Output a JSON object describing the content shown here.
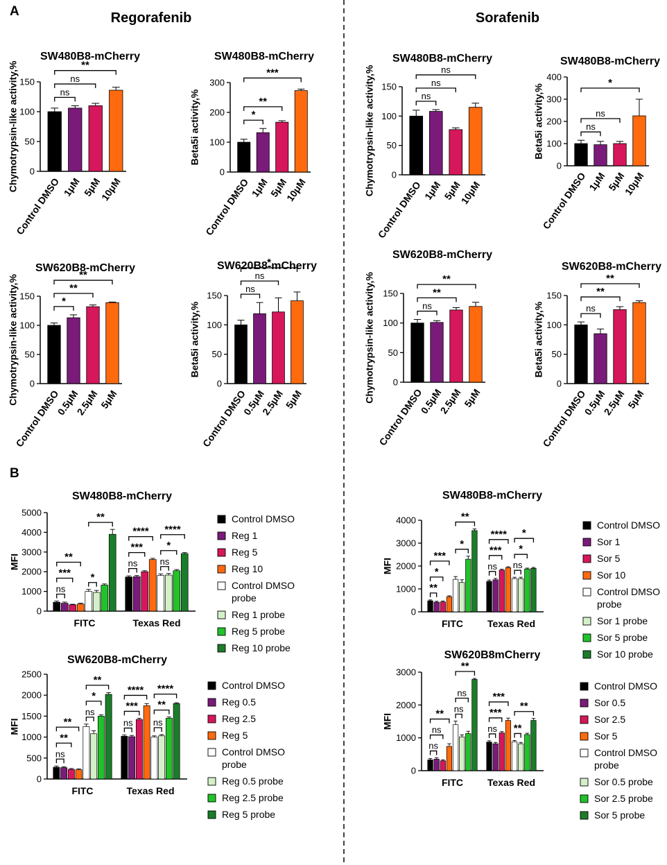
{
  "figure": {
    "panel_a": "A",
    "panel_b": "B",
    "drug_left": "Regorafenib",
    "drug_right": "Sorafenib"
  },
  "chart_data": [
    {
      "id": "a1",
      "type": "bar",
      "title": "SW480B8-mCherry",
      "ylabel": "Chymotrypsin-like activity,%",
      "ylim": [
        0,
        150
      ],
      "yticks": [
        0,
        50,
        100,
        150
      ],
      "categories": [
        "Control DMSO",
        "1μM",
        "5μM",
        "10μM"
      ],
      "values": [
        100,
        106,
        110,
        136
      ],
      "errors": [
        6,
        4,
        4,
        5
      ],
      "colors": [
        "#000000",
        "#7a1b7a",
        "#d6175b",
        "#ff6a0e"
      ],
      "comparisons": [
        {
          "label": "ns",
          "from": 0,
          "to": 1
        },
        {
          "label": "ns",
          "from": 0,
          "to": 2
        },
        {
          "label": "**",
          "from": 0,
          "to": 3
        }
      ]
    },
    {
      "id": "a2",
      "type": "bar",
      "title": "SW480B8-mCherry",
      "ylabel": "Beta5i activity,%",
      "ylim": [
        0,
        300
      ],
      "yticks": [
        0,
        100,
        200,
        300
      ],
      "categories": [
        "Control DMSO",
        "1μM",
        "5μM",
        "10μM"
      ],
      "values": [
        100,
        132,
        167,
        273
      ],
      "errors": [
        10,
        14,
        5,
        5
      ],
      "colors": [
        "#000000",
        "#7a1b7a",
        "#d6175b",
        "#ff6a0e"
      ],
      "comparisons": [
        {
          "label": "*",
          "from": 0,
          "to": 1
        },
        {
          "label": "**",
          "from": 0,
          "to": 2
        },
        {
          "label": "***",
          "from": 0,
          "to": 3
        }
      ]
    },
    {
      "id": "a3",
      "type": "bar",
      "title": "SW480B8-mCherry",
      "ylabel": "Chymotrypsin-like activity,%",
      "ylim": [
        0,
        150
      ],
      "yticks": [
        0,
        50,
        100,
        150
      ],
      "categories": [
        "Control DMSO",
        "1μM",
        "5μM",
        "10μM"
      ],
      "values": [
        100,
        108,
        77,
        115
      ],
      "errors": [
        10,
        3,
        3,
        7
      ],
      "colors": [
        "#000000",
        "#7a1b7a",
        "#d6175b",
        "#ff6a0e"
      ],
      "comparisons": [
        {
          "label": "ns",
          "from": 0,
          "to": 1
        },
        {
          "label": "ns",
          "from": 0,
          "to": 2
        },
        {
          "label": "ns",
          "from": 0,
          "to": 3
        }
      ]
    },
    {
      "id": "a4",
      "type": "bar",
      "title": "SW480B8-mCherry",
      "ylabel": "Beta5i activity,%",
      "ylim": [
        0,
        400
      ],
      "yticks": [
        0,
        100,
        200,
        300,
        400
      ],
      "categories": [
        "Control DMSO",
        "1μM",
        "5μM",
        "10μM"
      ],
      "values": [
        100,
        95,
        100,
        225
      ],
      "errors": [
        15,
        15,
        10,
        75
      ],
      "colors": [
        "#000000",
        "#7a1b7a",
        "#d6175b",
        "#ff6a0e"
      ],
      "comparisons": [
        {
          "label": "ns",
          "from": 0,
          "to": 1
        },
        {
          "label": "ns",
          "from": 0,
          "to": 2
        },
        {
          "label": "*",
          "from": 0,
          "to": 3
        }
      ]
    },
    {
      "id": "a5",
      "type": "bar",
      "title": "SW620B8-mCherry",
      "ylabel": "Chymotrypsin-like activity,%",
      "ylim": [
        0,
        150
      ],
      "yticks": [
        0,
        50,
        100,
        150
      ],
      "categories": [
        "Control DMSO",
        "0.5μM",
        "2.5μM",
        "5μM"
      ],
      "values": [
        100,
        113,
        132,
        139
      ],
      "errors": [
        4,
        5,
        3,
        1
      ],
      "colors": [
        "#000000",
        "#7a1b7a",
        "#d6175b",
        "#ff6a0e"
      ],
      "comparisons": [
        {
          "label": "*",
          "from": 0,
          "to": 1
        },
        {
          "label": "**",
          "from": 0,
          "to": 2
        },
        {
          "label": "**",
          "from": 0,
          "to": 3
        }
      ]
    },
    {
      "id": "a6",
      "type": "bar",
      "title": "SW620B8-mCherry",
      "ylabel": "Beta5i activity,%",
      "ylim": [
        0,
        150
      ],
      "yticks": [
        0,
        50,
        100,
        150
      ],
      "categories": [
        "Control DMSO",
        "0.5μM",
        "2.5μM",
        "5μM"
      ],
      "values": [
        100,
        119,
        122,
        141
      ],
      "errors": [
        8,
        19,
        24,
        15
      ],
      "colors": [
        "#000000",
        "#7a1b7a",
        "#d6175b",
        "#ff6a0e"
      ],
      "comparisons": [
        {
          "label": "ns",
          "from": 0,
          "to": 1
        },
        {
          "label": "ns",
          "from": 0,
          "to": 2
        },
        {
          "label": "*",
          "from": 0,
          "to": 3
        }
      ]
    },
    {
      "id": "a7",
      "type": "bar",
      "title": "SW620B8-mCherry",
      "ylabel": "Chymotrypsin-like activity,%",
      "ylim": [
        0,
        150
      ],
      "yticks": [
        0,
        50,
        100,
        150
      ],
      "categories": [
        "Control DMSO",
        "0.5μM",
        "2.5μM",
        "5μM"
      ],
      "values": [
        100,
        101,
        122,
        128
      ],
      "errors": [
        6,
        3,
        4,
        7
      ],
      "colors": [
        "#000000",
        "#7a1b7a",
        "#d6175b",
        "#ff6a0e"
      ],
      "comparisons": [
        {
          "label": "ns",
          "from": 0,
          "to": 1
        },
        {
          "label": "**",
          "from": 0,
          "to": 2
        },
        {
          "label": "**",
          "from": 0,
          "to": 3
        }
      ]
    },
    {
      "id": "a8",
      "type": "bar",
      "title": "SW620B8-mCherry",
      "ylabel": "Beta5i activity,%",
      "ylim": [
        0,
        150
      ],
      "yticks": [
        0,
        50,
        100,
        150
      ],
      "categories": [
        "Control DMSO",
        "0.5μM",
        "2.5μM",
        "5μM"
      ],
      "values": [
        100,
        85,
        126,
        138
      ],
      "errors": [
        5,
        8,
        5,
        3
      ],
      "colors": [
        "#000000",
        "#7a1b7a",
        "#d6175b",
        "#ff6a0e"
      ],
      "comparisons": [
        {
          "label": "ns",
          "from": 0,
          "to": 1
        },
        {
          "label": "**",
          "from": 0,
          "to": 2
        },
        {
          "label": "**",
          "from": 0,
          "to": 3
        }
      ]
    },
    {
      "id": "b1",
      "type": "bar",
      "title": "SW480B8-mCherry",
      "ylabel": "MFI",
      "ylim": [
        0,
        5000
      ],
      "yticks": [
        0,
        1000,
        2000,
        3000,
        4000,
        5000
      ],
      "groups": [
        "FITC",
        "Texas Red"
      ],
      "series": [
        {
          "name": "Control DMSO",
          "values": [
            450,
            1730
          ]
        },
        {
          "name": "Reg 1",
          "values": [
            400,
            1750
          ]
        },
        {
          "name": "Reg 5",
          "values": [
            320,
            2000
          ]
        },
        {
          "name": "Reg 10",
          "values": [
            360,
            2620
          ]
        },
        {
          "name": "Control DMSO probe",
          "values": [
            1000,
            1810
          ]
        },
        {
          "name": "Reg 1 probe",
          "values": [
            950,
            1830
          ]
        },
        {
          "name": "Reg 5 probe",
          "values": [
            1320,
            2050
          ]
        },
        {
          "name": "Reg 10 probe",
          "values": [
            3900,
            2920
          ]
        }
      ],
      "errors": [
        [
          60,
          60,
          30,
          40,
          100,
          100,
          60,
          250
        ],
        [
          60,
          60,
          50,
          60,
          80,
          80,
          60,
          50
        ]
      ],
      "comparisons": [
        {
          "label": "ns",
          "group": 0,
          "from": 0,
          "to": 1
        },
        {
          "label": "***",
          "group": 0,
          "from": 0,
          "to": 2
        },
        {
          "label": "**",
          "group": 0,
          "from": 0,
          "to": 3
        },
        {
          "label": "*",
          "group": 0,
          "from": 4,
          "to": 5
        },
        {
          "label": "**",
          "group": 0,
          "from": 4,
          "to": 7
        },
        {
          "label": "ns",
          "group": 1,
          "from": 0,
          "to": 1
        },
        {
          "label": "***",
          "group": 1,
          "from": 0,
          "to": 2
        },
        {
          "label": "****",
          "group": 1,
          "from": 0,
          "to": 3
        },
        {
          "label": "ns",
          "group": 1,
          "from": 4,
          "to": 5
        },
        {
          "label": "*",
          "group": 1,
          "from": 4,
          "to": 6
        },
        {
          "label": "****",
          "group": 1,
          "from": 4,
          "to": 7
        }
      ]
    },
    {
      "id": "b2",
      "type": "bar",
      "title": "SW480B8-mCherry",
      "ylabel": "MFI",
      "ylim": [
        0,
        4000
      ],
      "yticks": [
        0,
        1000,
        2000,
        3000,
        4000
      ],
      "groups": [
        "FITC",
        "Texas Red"
      ],
      "series": [
        {
          "name": "Control DMSO",
          "values": [
            480,
            1330
          ]
        },
        {
          "name": "Sor 1",
          "values": [
            420,
            1400
          ]
        },
        {
          "name": "Sor 5",
          "values": [
            430,
            1820
          ]
        },
        {
          "name": "Sor 10",
          "values": [
            660,
            1930
          ]
        },
        {
          "name": "Control DMSO probe",
          "values": [
            1420,
            1450
          ]
        },
        {
          "name": "Sor 1 probe",
          "values": [
            1280,
            1450
          ]
        },
        {
          "name": "Sor 5 probe",
          "values": [
            2300,
            1870
          ]
        },
        {
          "name": "Sor 10 probe",
          "values": [
            3550,
            1900
          ]
        }
      ],
      "errors": [
        [
          40,
          40,
          40,
          40,
          120,
          120,
          130,
          70
        ],
        [
          60,
          60,
          40,
          40,
          60,
          60,
          40,
          40
        ]
      ],
      "comparisons": [
        {
          "label": "**",
          "group": 0,
          "from": 0,
          "to": 1
        },
        {
          "label": "*",
          "group": 0,
          "from": 0,
          "to": 2
        },
        {
          "label": "***",
          "group": 0,
          "from": 0,
          "to": 3
        },
        {
          "label": "*",
          "group": 0,
          "from": 4,
          "to": 6
        },
        {
          "label": "**",
          "group": 0,
          "from": 4,
          "to": 7
        },
        {
          "label": "ns",
          "group": 1,
          "from": 0,
          "to": 1
        },
        {
          "label": "***",
          "group": 1,
          "from": 0,
          "to": 2
        },
        {
          "label": "****",
          "group": 1,
          "from": 0,
          "to": 3
        },
        {
          "label": "ns",
          "group": 1,
          "from": 4,
          "to": 5
        },
        {
          "label": "*",
          "group": 1,
          "from": 4,
          "to": 6
        },
        {
          "label": "*",
          "group": 1,
          "from": 4,
          "to": 7
        }
      ]
    },
    {
      "id": "b3",
      "type": "bar",
      "title": "SW620B8-mCherry",
      "ylabel": "MFI",
      "ylim": [
        0,
        2500
      ],
      "yticks": [
        0,
        500,
        1000,
        1500,
        2000,
        2500
      ],
      "groups": [
        "FITC",
        "Texas Red"
      ],
      "series": [
        {
          "name": "Control DMSO",
          "values": [
            280,
            1020
          ]
        },
        {
          "name": "Reg 0.5",
          "values": [
            270,
            1010
          ]
        },
        {
          "name": "Reg 2.5",
          "values": [
            230,
            1420
          ]
        },
        {
          "name": "Reg 5",
          "values": [
            220,
            1750
          ]
        },
        {
          "name": "Control DMSO probe",
          "values": [
            1250,
            1000
          ]
        },
        {
          "name": "Reg 0.5 probe",
          "values": [
            1080,
            1030
          ]
        },
        {
          "name": "Reg 2.5 probe",
          "values": [
            1500,
            1450
          ]
        },
        {
          "name": "Reg 5 probe",
          "values": [
            2020,
            1800
          ]
        }
      ],
      "errors": [
        [
          30,
          20,
          20,
          20,
          60,
          70,
          30,
          40
        ],
        [
          30,
          30,
          30,
          50,
          30,
          30,
          30,
          20
        ]
      ],
      "comparisons": [
        {
          "label": "ns",
          "group": 0,
          "from": 0,
          "to": 1
        },
        {
          "label": "**",
          "group": 0,
          "from": 0,
          "to": 2
        },
        {
          "label": "**",
          "group": 0,
          "from": 0,
          "to": 3
        },
        {
          "label": "ns",
          "group": 0,
          "from": 4,
          "to": 5
        },
        {
          "label": "*",
          "group": 0,
          "from": 4,
          "to": 6
        },
        {
          "label": "**",
          "group": 0,
          "from": 4,
          "to": 7
        },
        {
          "label": "ns",
          "group": 1,
          "from": 0,
          "to": 1
        },
        {
          "label": "***",
          "group": 1,
          "from": 0,
          "to": 2
        },
        {
          "label": "****",
          "group": 1,
          "from": 0,
          "to": 3
        },
        {
          "label": "ns",
          "group": 1,
          "from": 4,
          "to": 5
        },
        {
          "label": "**",
          "group": 1,
          "from": 4,
          "to": 6
        },
        {
          "label": "****",
          "group": 1,
          "from": 4,
          "to": 7
        }
      ]
    },
    {
      "id": "b4",
      "type": "bar",
      "title": "SW620B8mCherry",
      "ylabel": "MFI",
      "ylim": [
        0,
        3000
      ],
      "yticks": [
        0,
        1000,
        2000,
        3000
      ],
      "groups": [
        "FITC",
        "Texas Red"
      ],
      "series": [
        {
          "name": "Control DMSO",
          "values": [
            330,
            870
          ]
        },
        {
          "name": "Sor 0.5",
          "values": [
            350,
            820
          ]
        },
        {
          "name": "Sor 2.5",
          "values": [
            300,
            1150
          ]
        },
        {
          "name": "Sor 5",
          "values": [
            740,
            1530
          ]
        },
        {
          "name": "Control DMSO probe",
          "values": [
            1400,
            880
          ]
        },
        {
          "name": "Sor 0.5 probe",
          "values": [
            1030,
            820
          ]
        },
        {
          "name": "Sor 2.5 probe",
          "values": [
            1130,
            1100
          ]
        },
        {
          "name": "Sor 5 probe",
          "values": [
            2780,
            1530
          ]
        }
      ],
      "errors": [
        [
          40,
          40,
          30,
          80,
          110,
          60,
          70,
          30
        ],
        [
          40,
          40,
          40,
          70,
          40,
          40,
          40,
          60
        ]
      ],
      "comparisons": [
        {
          "label": "ns",
          "group": 0,
          "from": 0,
          "to": 1
        },
        {
          "label": "ns",
          "group": 0,
          "from": 0,
          "to": 2
        },
        {
          "label": "**",
          "group": 0,
          "from": 0,
          "to": 3
        },
        {
          "label": "ns",
          "group": 0,
          "from": 4,
          "to": 5
        },
        {
          "label": "ns",
          "group": 0,
          "from": 4,
          "to": 6
        },
        {
          "label": "**",
          "group": 0,
          "from": 4,
          "to": 7
        },
        {
          "label": "ns",
          "group": 1,
          "from": 0,
          "to": 1
        },
        {
          "label": "***",
          "group": 1,
          "from": 0,
          "to": 2
        },
        {
          "label": "***",
          "group": 1,
          "from": 0,
          "to": 3
        },
        {
          "label": "**",
          "group": 1,
          "from": 4,
          "to": 5
        },
        {
          "label": "**",
          "group": 1,
          "from": 4,
          "to": 7
        }
      ]
    }
  ],
  "colors": {
    "series": [
      "#000000",
      "#7a1b7a",
      "#d6175b",
      "#ff6a0e",
      "#ffffff",
      "#d4f0c8",
      "#22c22a",
      "#1b7d2a"
    ],
    "edge": "#000000",
    "divider": "#000000"
  }
}
